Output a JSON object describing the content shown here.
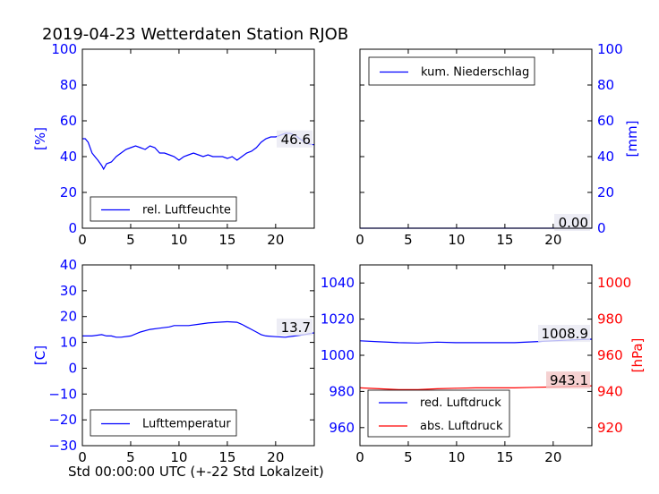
{
  "title": "2019-04-23 Wetterdaten Station RJOB",
  "footer_xlabel": "Std 00:00:00 UTC (+-22 Std Lokalzeit)",
  "colors": {
    "blue": "#0000ff",
    "red": "#ff0000"
  },
  "chart_data": [
    {
      "id": "humidity",
      "type": "line",
      "xlim": [
        0,
        24
      ],
      "ylim": [
        0,
        100
      ],
      "xticks": [
        0,
        5,
        10,
        15,
        20
      ],
      "yticks": [
        0,
        20,
        40,
        60,
        80,
        100
      ],
      "ylabel": "[%]",
      "legend": "top-left-bottom",
      "last_value_label": "46.6",
      "series": [
        {
          "name": "rel. Luftfeuchte",
          "color": "#0000ff",
          "x": [
            0,
            0.3,
            0.6,
            1,
            1.3,
            1.6,
            2,
            2.2,
            2.5,
            3,
            3.5,
            4,
            4.5,
            5,
            5.5,
            6,
            6.5,
            7,
            7.5,
            8,
            8.5,
            9,
            9.5,
            10,
            10.5,
            11,
            11.5,
            12,
            12.5,
            13,
            13.5,
            14,
            14.5,
            15,
            15.5,
            16,
            16.5,
            17,
            17.5,
            18,
            18.5,
            19,
            19.5,
            20,
            20.5,
            21,
            21.5,
            22,
            22.5,
            23,
            23.5,
            24
          ],
          "y": [
            50,
            50,
            48,
            42,
            40,
            38,
            35,
            33,
            36,
            37,
            40,
            42,
            44,
            45,
            46,
            45,
            44,
            46,
            45,
            42,
            42,
            41,
            40,
            38,
            40,
            41,
            42,
            41,
            40,
            41,
            40,
            40,
            40,
            39,
            40,
            38,
            40,
            42,
            43,
            45,
            48,
            50,
            51,
            51,
            52,
            53,
            53,
            52,
            50,
            48,
            47,
            46.6
          ]
        }
      ]
    },
    {
      "id": "precipitation",
      "type": "line",
      "xlim": [
        0,
        24
      ],
      "ylim": [
        0,
        100
      ],
      "xticks": [
        0,
        5,
        10,
        15,
        20
      ],
      "yticks": [
        0,
        20,
        40,
        60,
        80,
        100
      ],
      "ylabel": "[mm]",
      "legend": "top-left",
      "last_value_label": "0.00",
      "series": [
        {
          "name": "kum. Niederschlag",
          "color": "#0000ff",
          "x": [
            0,
            24
          ],
          "y": [
            0,
            0
          ]
        }
      ]
    },
    {
      "id": "temperature",
      "type": "line",
      "xlim": [
        0,
        24
      ],
      "ylim": [
        -30,
        40
      ],
      "xticks": [
        0,
        5,
        10,
        15,
        20
      ],
      "yticks": [
        -30,
        -20,
        -10,
        0,
        10,
        20,
        30,
        40
      ],
      "ylabel": "[C]",
      "legend": "bottom-left",
      "last_value_label": "13.7",
      "series": [
        {
          "name": "Lufttemperatur",
          "color": "#0000ff",
          "x": [
            0,
            1,
            2,
            2.5,
            3,
            3.5,
            4,
            5,
            6,
            7,
            8,
            9,
            9.5,
            10,
            11,
            12,
            13,
            14,
            15,
            16,
            16.5,
            17,
            17.5,
            18,
            18.5,
            19,
            20,
            21,
            22,
            23,
            24
          ],
          "y": [
            12.5,
            12.5,
            13,
            12.5,
            12.5,
            12,
            12,
            12.5,
            14,
            15,
            15.5,
            16,
            16.5,
            16.5,
            16.5,
            17,
            17.5,
            17.8,
            18,
            17.8,
            17,
            16,
            15,
            14,
            13,
            12.5,
            12.2,
            12,
            12.5,
            13,
            13.7
          ]
        }
      ]
    },
    {
      "id": "pressure",
      "type": "line",
      "xlim": [
        0,
        24
      ],
      "ylim": [
        950,
        1050
      ],
      "ylim_right": [
        910,
        1010
      ],
      "xticks": [
        0,
        5,
        10,
        15,
        20
      ],
      "yticks": [
        960,
        980,
        1000,
        1020,
        1040
      ],
      "yticks_right": [
        920,
        940,
        960,
        980,
        1000
      ],
      "ylabel_right": "[hPa]",
      "legend": "bottom-left",
      "series": [
        {
          "name": "red. Luftdruck",
          "color": "#0000ff",
          "axis": "left",
          "last_value_label": "1008.9",
          "x": [
            0,
            2,
            4,
            6,
            8,
            10,
            12,
            14,
            16,
            18,
            20,
            22,
            24
          ],
          "y": [
            1008,
            1007.5,
            1007,
            1006.8,
            1007.3,
            1007,
            1007,
            1007,
            1007,
            1007.5,
            1008,
            1008.5,
            1008.9
          ]
        },
        {
          "name": "abs. Luftdruck",
          "color": "#ff0000",
          "axis": "right",
          "last_value_label": "943.1",
          "x": [
            0,
            2,
            4,
            6,
            8,
            10,
            12,
            14,
            16,
            18,
            20,
            22,
            24
          ],
          "y": [
            942,
            941.5,
            941,
            941,
            941.5,
            941.8,
            942,
            942,
            942,
            942.3,
            942.5,
            942.8,
            943.1
          ]
        }
      ]
    }
  ]
}
